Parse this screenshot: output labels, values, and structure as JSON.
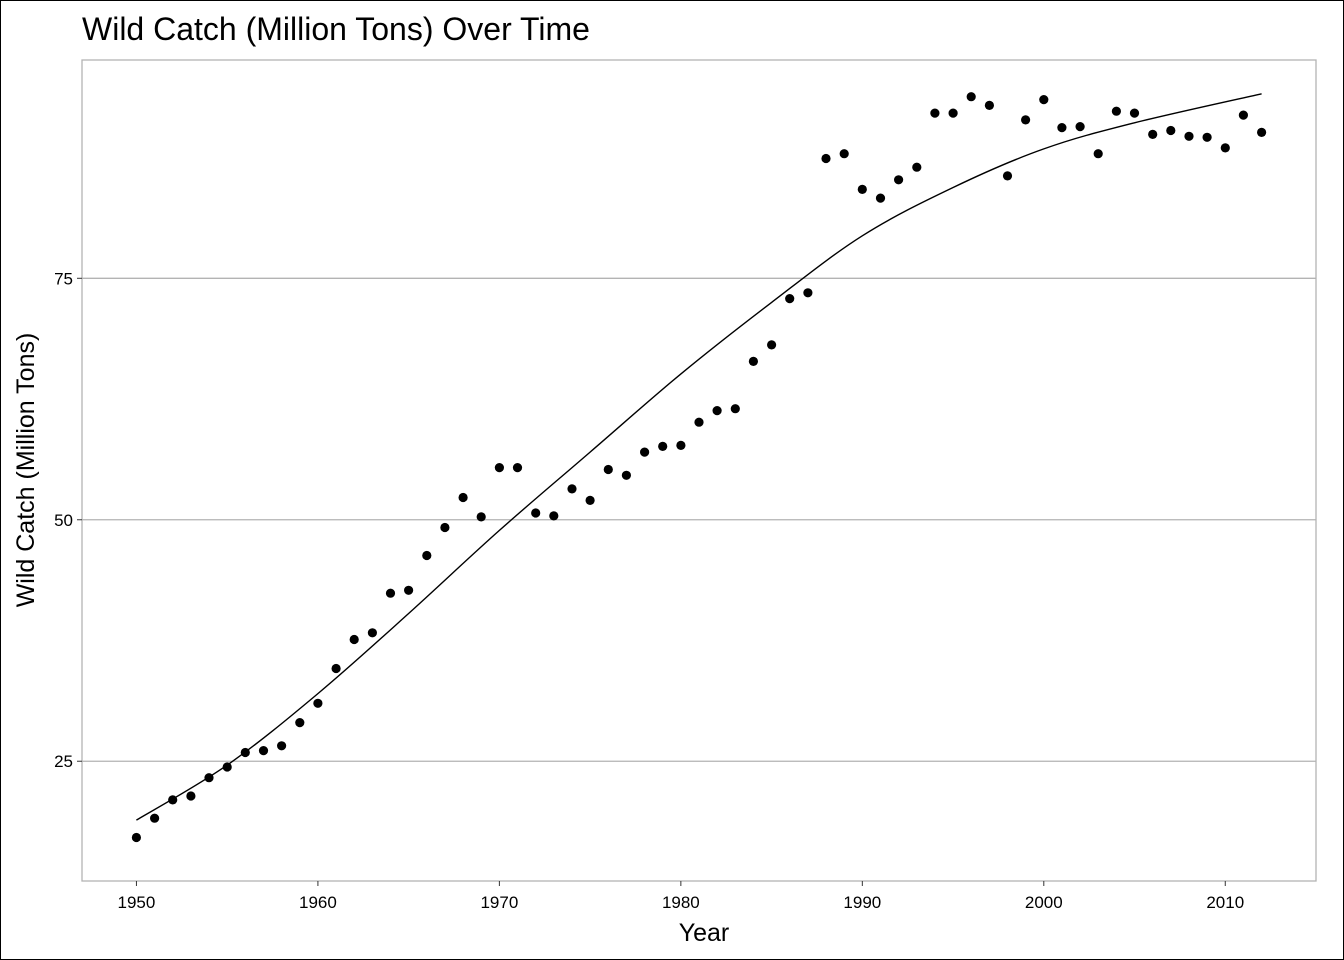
{
  "chart_data": {
    "type": "scatter",
    "title": "Wild Catch (Million Tons) Over Time",
    "xlabel": "Year",
    "ylabel": "Wild Catch (Million Tons)",
    "xlim": [
      1947,
      2015
    ],
    "ylim": [
      12.6,
      97.6
    ],
    "x_ticks": [
      1950,
      1960,
      1970,
      1980,
      1990,
      2000,
      2010
    ],
    "y_ticks": [
      25,
      50,
      75
    ],
    "grid": "horizontal major",
    "legend": "none",
    "colors": {
      "points": "#000000",
      "trend": "#000000",
      "grid": "#b3b3b3",
      "panel_border": "#b3b3b3"
    },
    "points": [
      {
        "x": 1950,
        "y": 17.1
      },
      {
        "x": 1951,
        "y": 19.1
      },
      {
        "x": 1952,
        "y": 21.0
      },
      {
        "x": 1953,
        "y": 21.4
      },
      {
        "x": 1954,
        "y": 23.3
      },
      {
        "x": 1955,
        "y": 24.4
      },
      {
        "x": 1956,
        "y": 25.9
      },
      {
        "x": 1957,
        "y": 26.1
      },
      {
        "x": 1958,
        "y": 26.6
      },
      {
        "x": 1959,
        "y": 29.0
      },
      {
        "x": 1960,
        "y": 31.0
      },
      {
        "x": 1961,
        "y": 34.6
      },
      {
        "x": 1962,
        "y": 37.6
      },
      {
        "x": 1963,
        "y": 38.3
      },
      {
        "x": 1964,
        "y": 42.4
      },
      {
        "x": 1965,
        "y": 42.7
      },
      {
        "x": 1966,
        "y": 46.3
      },
      {
        "x": 1967,
        "y": 49.2
      },
      {
        "x": 1968,
        "y": 52.3
      },
      {
        "x": 1969,
        "y": 50.3
      },
      {
        "x": 1970,
        "y": 55.4
      },
      {
        "x": 1971,
        "y": 55.4
      },
      {
        "x": 1972,
        "y": 50.7
      },
      {
        "x": 1973,
        "y": 50.4
      },
      {
        "x": 1974,
        "y": 53.2
      },
      {
        "x": 1975,
        "y": 52.0
      },
      {
        "x": 1976,
        "y": 55.2
      },
      {
        "x": 1977,
        "y": 54.6
      },
      {
        "x": 1978,
        "y": 57.0
      },
      {
        "x": 1979,
        "y": 57.6
      },
      {
        "x": 1980,
        "y": 57.7
      },
      {
        "x": 1981,
        "y": 60.1
      },
      {
        "x": 1982,
        "y": 61.3
      },
      {
        "x": 1983,
        "y": 61.5
      },
      {
        "x": 1984,
        "y": 66.4
      },
      {
        "x": 1985,
        "y": 68.1
      },
      {
        "x": 1986,
        "y": 72.9
      },
      {
        "x": 1987,
        "y": 73.5
      },
      {
        "x": 1988,
        "y": 87.4
      },
      {
        "x": 1989,
        "y": 87.9
      },
      {
        "x": 1990,
        "y": 84.2
      },
      {
        "x": 1991,
        "y": 83.3
      },
      {
        "x": 1992,
        "y": 85.2
      },
      {
        "x": 1993,
        "y": 86.5
      },
      {
        "x": 1994,
        "y": 92.1
      },
      {
        "x": 1995,
        "y": 92.1
      },
      {
        "x": 1996,
        "y": 93.8
      },
      {
        "x": 1997,
        "y": 92.9
      },
      {
        "x": 1998,
        "y": 85.6
      },
      {
        "x": 1999,
        "y": 91.4
      },
      {
        "x": 2000,
        "y": 93.5
      },
      {
        "x": 2001,
        "y": 90.6
      },
      {
        "x": 2002,
        "y": 90.7
      },
      {
        "x": 2003,
        "y": 87.9
      },
      {
        "x": 2004,
        "y": 92.3
      },
      {
        "x": 2005,
        "y": 92.1
      },
      {
        "x": 2006,
        "y": 89.9
      },
      {
        "x": 2007,
        "y": 90.3
      },
      {
        "x": 2008,
        "y": 89.7
      },
      {
        "x": 2009,
        "y": 89.6
      },
      {
        "x": 2010,
        "y": 88.5
      },
      {
        "x": 2011,
        "y": 91.9
      },
      {
        "x": 2012,
        "y": 90.1
      }
    ],
    "trend_line": [
      {
        "x": 1950,
        "y": 18.9
      },
      {
        "x": 1955,
        "y": 24.6
      },
      {
        "x": 1960,
        "y": 32.0
      },
      {
        "x": 1965,
        "y": 40.3
      },
      {
        "x": 1970,
        "y": 48.9
      },
      {
        "x": 1975,
        "y": 57.0
      },
      {
        "x": 1980,
        "y": 65.1
      },
      {
        "x": 1985,
        "y": 72.5
      },
      {
        "x": 1990,
        "y": 79.4
      },
      {
        "x": 1995,
        "y": 84.4
      },
      {
        "x": 2000,
        "y": 88.4
      },
      {
        "x": 2005,
        "y": 91.1
      },
      {
        "x": 2012,
        "y": 94.1
      }
    ]
  }
}
